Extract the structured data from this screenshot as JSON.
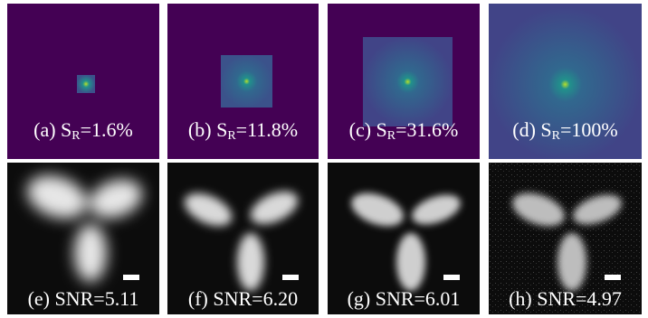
{
  "figure": {
    "top_row": [
      {
        "label_prefix": "(a) S",
        "label_sub": "R",
        "label_suffix": "=1.6%",
        "sampling_percent": 1.6
      },
      {
        "label_prefix": "(b) S",
        "label_sub": "R",
        "label_suffix": "=11.8%",
        "sampling_percent": 11.8
      },
      {
        "label_prefix": "(c) S",
        "label_sub": "R",
        "label_suffix": "=31.6%",
        "sampling_percent": 31.6
      },
      {
        "label_prefix": "(d) S",
        "label_sub": "R",
        "label_suffix": "=100%",
        "sampling_percent": 100
      }
    ],
    "bottom_row": [
      {
        "label": "(e) SNR=5.11"
      },
      {
        "label": "(f) SNR=6.20"
      },
      {
        "label": "(g) SNR=6.01"
      },
      {
        "label": "(h) SNR=4.97"
      }
    ],
    "colors": {
      "spectrum_background": "#440154",
      "spectrum_noise": "#3b528b",
      "spectrum_center": "#b5de2b",
      "reconstruction_background": "#0c0c0c",
      "reconstruction_object": "#e6e6e6",
      "caption_text": "#ffffff"
    }
  }
}
